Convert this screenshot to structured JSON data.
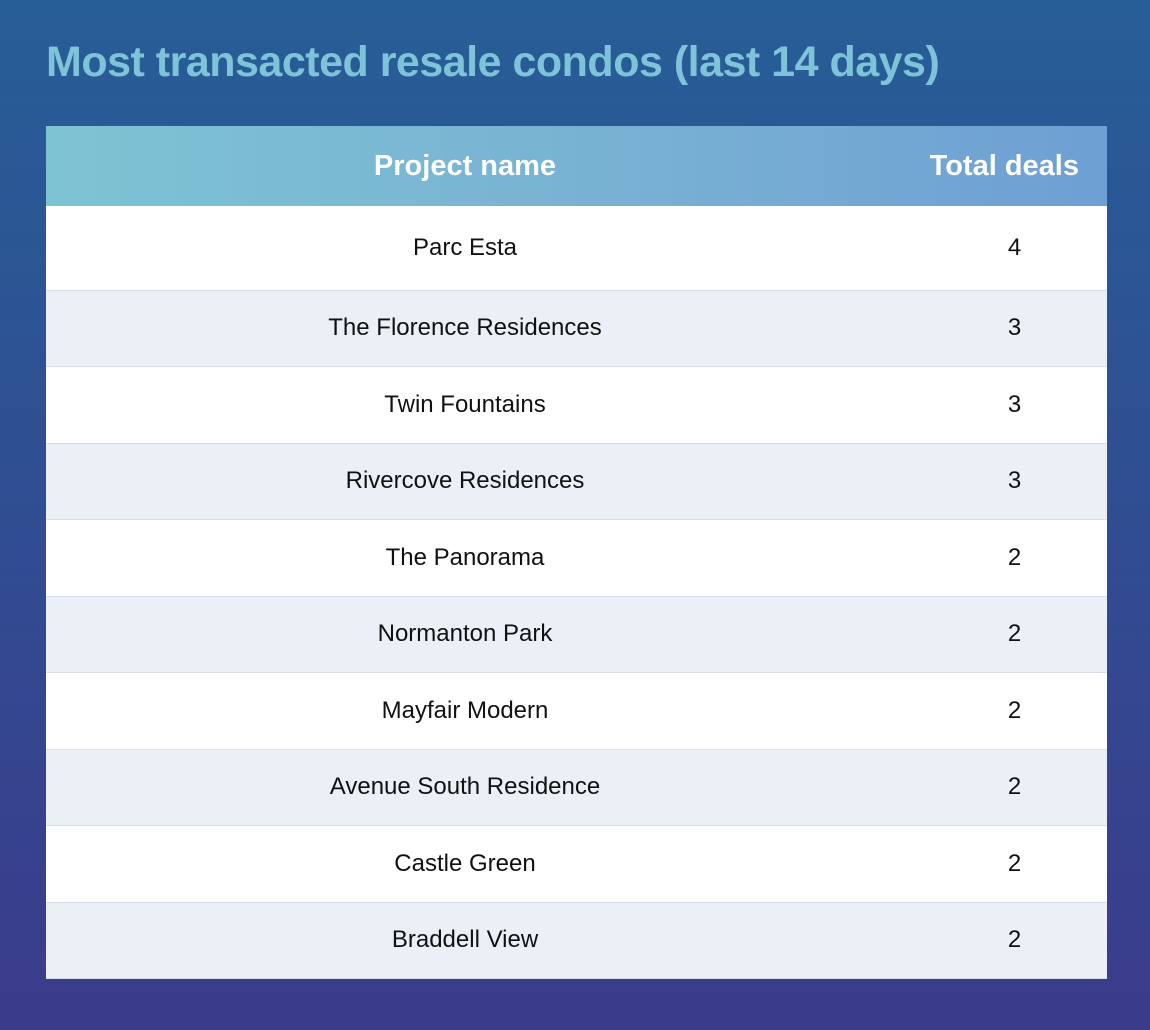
{
  "title": "Most transacted resale condos (last 14 days)",
  "table": {
    "headers": {
      "project": "Project name",
      "deals": "Total deals"
    },
    "rows": [
      {
        "project": "Parc Esta",
        "deals": "4"
      },
      {
        "project": "The Florence Residences",
        "deals": "3"
      },
      {
        "project": "Twin Fountains",
        "deals": "3"
      },
      {
        "project": "Rivercove Residences",
        "deals": "3"
      },
      {
        "project": "The Panorama",
        "deals": "2"
      },
      {
        "project": "Normanton Park",
        "deals": "2"
      },
      {
        "project": "Mayfair Modern",
        "deals": "2"
      },
      {
        "project": "Avenue South Residence",
        "deals": "2"
      },
      {
        "project": "Castle Green",
        "deals": "2"
      },
      {
        "project": "Braddell View",
        "deals": "2"
      }
    ]
  },
  "colors": {
    "title": "#7ec3d8",
    "header_start": "#7ec3d3",
    "header_end": "#6e9fd3",
    "row_alt": "#ebf0f7",
    "background_top": "#275e96",
    "background_bottom": "#3b3b8b"
  }
}
